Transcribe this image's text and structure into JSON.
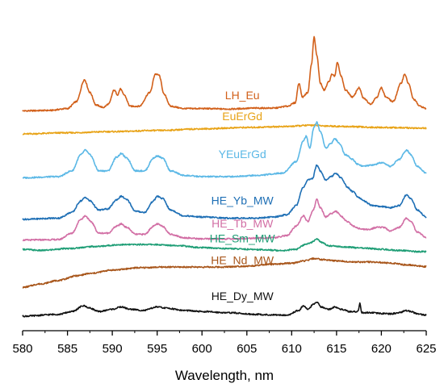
{
  "chart_data": {
    "type": "line",
    "title": "",
    "xlabel": "Wavelength, nm",
    "ylabel": "",
    "xlim": [
      580,
      625
    ],
    "xticks": [
      580,
      585,
      590,
      595,
      600,
      605,
      610,
      615,
      620,
      625
    ],
    "y_axis_shown": false,
    "grid": false,
    "legend": "inline labels",
    "series": [
      {
        "name": "LH_Eu",
        "color": "#d2601a",
        "offset": 8.9,
        "points": [
          [
            580,
            0.0
          ],
          [
            583,
            0.02
          ],
          [
            585,
            0.1
          ],
          [
            586,
            0.4
          ],
          [
            586.9,
            1.35
          ],
          [
            587.5,
            0.8
          ],
          [
            588.2,
            0.25
          ],
          [
            589,
            0.15
          ],
          [
            589.6,
            0.3
          ],
          [
            590.2,
            0.9
          ],
          [
            590.6,
            0.7
          ],
          [
            590.9,
            0.95
          ],
          [
            591.3,
            0.7
          ],
          [
            592,
            0.2
          ],
          [
            593,
            0.2
          ],
          [
            594.2,
            0.8
          ],
          [
            594.8,
            1.6
          ],
          [
            595.2,
            1.55
          ],
          [
            595.8,
            0.7
          ],
          [
            596.5,
            0.2
          ],
          [
            598,
            0.1
          ],
          [
            600,
            0.1
          ],
          [
            603,
            0.08
          ],
          [
            606,
            0.12
          ],
          [
            608,
            0.12
          ],
          [
            609.5,
            0.2
          ],
          [
            610.4,
            0.35
          ],
          [
            610.8,
            1.2
          ],
          [
            611.2,
            0.6
          ],
          [
            611.8,
            0.8
          ],
          [
            612.2,
            2.0
          ],
          [
            612.5,
            3.2
          ],
          [
            612.8,
            2.4
          ],
          [
            613.2,
            1.2
          ],
          [
            613.6,
            0.9
          ],
          [
            614.2,
            1.3
          ],
          [
            614.5,
            1.6
          ],
          [
            614.8,
            1.5
          ],
          [
            615.1,
            2.1
          ],
          [
            615.5,
            1.5
          ],
          [
            616,
            0.9
          ],
          [
            616.8,
            0.6
          ],
          [
            617.5,
            1.0
          ],
          [
            618,
            0.55
          ],
          [
            618.8,
            0.3
          ],
          [
            619.5,
            0.6
          ],
          [
            620,
            1.0
          ],
          [
            620.5,
            0.6
          ],
          [
            621.3,
            0.4
          ],
          [
            622.2,
            1.2
          ],
          [
            622.6,
            1.6
          ],
          [
            623,
            1.2
          ],
          [
            623.6,
            0.5
          ],
          [
            624.3,
            0.2
          ],
          [
            625,
            0.1
          ]
        ]
      },
      {
        "name": "EuErGd",
        "color": "#e8a317",
        "offset": 7.9,
        "points": [
          [
            580,
            0.0
          ],
          [
            585,
            0.05
          ],
          [
            590,
            0.1
          ],
          [
            595,
            0.15
          ],
          [
            600,
            0.22
          ],
          [
            605,
            0.28
          ],
          [
            609,
            0.32
          ],
          [
            612.5,
            0.38
          ],
          [
            613.5,
            0.35
          ],
          [
            616,
            0.32
          ],
          [
            620,
            0.28
          ],
          [
            625,
            0.25
          ]
        ]
      },
      {
        "name": "YEuErGd",
        "color": "#5bb8e6",
        "offset": 6.0,
        "points": [
          [
            580,
            0.0
          ],
          [
            584,
            0.05
          ],
          [
            585.5,
            0.3
          ],
          [
            586.5,
            1.0
          ],
          [
            587,
            1.2
          ],
          [
            587.5,
            1.0
          ],
          [
            588.5,
            0.3
          ],
          [
            589.5,
            0.3
          ],
          [
            590.5,
            0.9
          ],
          [
            591,
            1.05
          ],
          [
            591.6,
            0.85
          ],
          [
            592.6,
            0.3
          ],
          [
            593.6,
            0.3
          ],
          [
            594.6,
            0.85
          ],
          [
            595,
            0.95
          ],
          [
            595.6,
            0.85
          ],
          [
            596.5,
            0.3
          ],
          [
            598,
            0.1
          ],
          [
            600,
            0.05
          ],
          [
            603,
            0.05
          ],
          [
            606,
            0.1
          ],
          [
            609,
            0.2
          ],
          [
            610.5,
            0.7
          ],
          [
            611.3,
            1.6
          ],
          [
            611.6,
            1.8
          ],
          [
            612,
            1.3
          ],
          [
            612.5,
            2.2
          ],
          [
            612.8,
            2.4
          ],
          [
            613.2,
            2.0
          ],
          [
            613.8,
            1.3
          ],
          [
            614.4,
            1.5
          ],
          [
            614.8,
            1.7
          ],
          [
            615.3,
            1.5
          ],
          [
            616,
            1.0
          ],
          [
            616.8,
            0.8
          ],
          [
            617.3,
            0.6
          ],
          [
            618,
            0.5
          ],
          [
            619,
            0.55
          ],
          [
            620,
            0.65
          ],
          [
            621,
            0.5
          ],
          [
            622,
            0.8
          ],
          [
            622.8,
            1.2
          ],
          [
            623.3,
            1.0
          ],
          [
            624,
            0.5
          ],
          [
            625,
            0.2
          ]
        ]
      },
      {
        "name": "HE_Yb_MW",
        "color": "#1e6fb5",
        "offset": 4.2,
        "points": [
          [
            580,
            0.0
          ],
          [
            584,
            0.05
          ],
          [
            585.5,
            0.3
          ],
          [
            586.5,
            0.8
          ],
          [
            587,
            0.95
          ],
          [
            587.5,
            0.8
          ],
          [
            588.5,
            0.4
          ],
          [
            589.5,
            0.45
          ],
          [
            590.5,
            0.85
          ],
          [
            591,
            1.0
          ],
          [
            591.6,
            0.85
          ],
          [
            592.6,
            0.35
          ],
          [
            593.6,
            0.3
          ],
          [
            594.6,
            0.8
          ],
          [
            595,
            1.0
          ],
          [
            595.6,
            0.9
          ],
          [
            596.5,
            0.4
          ],
          [
            598,
            0.15
          ],
          [
            600,
            0.1
          ],
          [
            603,
            0.05
          ],
          [
            606,
            0.05
          ],
          [
            608,
            0.1
          ],
          [
            609.5,
            0.2
          ],
          [
            610.5,
            0.6
          ],
          [
            611.3,
            1.4
          ],
          [
            611.8,
            1.7
          ],
          [
            612.3,
            1.75
          ],
          [
            612.8,
            2.35
          ],
          [
            613.2,
            2.1
          ],
          [
            613.8,
            1.7
          ],
          [
            614.4,
            1.85
          ],
          [
            614.9,
            2.0
          ],
          [
            615.5,
            1.8
          ],
          [
            616.2,
            1.4
          ],
          [
            616.8,
            1.2
          ],
          [
            617.5,
            0.95
          ],
          [
            618,
            0.8
          ],
          [
            619,
            0.6
          ],
          [
            620,
            0.55
          ],
          [
            621,
            0.5
          ],
          [
            622,
            0.6
          ],
          [
            622.8,
            1.05
          ],
          [
            623.3,
            0.9
          ],
          [
            624,
            0.4
          ],
          [
            625,
            0.1
          ]
        ]
      },
      {
        "name": "HE_Tb_MW",
        "color": "#d26fa5",
        "offset": 3.3,
        "points": [
          [
            580,
            0.0
          ],
          [
            584,
            0.02
          ],
          [
            585.5,
            0.3
          ],
          [
            586.5,
            0.9
          ],
          [
            587,
            1.05
          ],
          [
            587.6,
            0.8
          ],
          [
            588.5,
            0.3
          ],
          [
            589.5,
            0.3
          ],
          [
            590.5,
            0.6
          ],
          [
            591,
            0.7
          ],
          [
            591.6,
            0.55
          ],
          [
            592.6,
            0.25
          ],
          [
            593.6,
            0.25
          ],
          [
            594.6,
            0.6
          ],
          [
            595,
            0.7
          ],
          [
            595.6,
            0.6
          ],
          [
            596.5,
            0.25
          ],
          [
            598,
            0.1
          ],
          [
            600,
            0.05
          ],
          [
            603,
            0.05
          ],
          [
            606,
            0.08
          ],
          [
            608,
            0.1
          ],
          [
            609.5,
            0.2
          ],
          [
            610.5,
            0.6
          ],
          [
            611.3,
            1.05
          ],
          [
            611.8,
            0.8
          ],
          [
            612.4,
            1.3
          ],
          [
            612.8,
            1.75
          ],
          [
            613.2,
            1.4
          ],
          [
            613.8,
            1.0
          ],
          [
            614.4,
            1.15
          ],
          [
            614.9,
            1.25
          ],
          [
            615.6,
            1.0
          ],
          [
            616.2,
            0.8
          ],
          [
            616.9,
            0.6
          ],
          [
            617.5,
            0.5
          ],
          [
            618.5,
            0.45
          ],
          [
            619.5,
            0.55
          ],
          [
            620.2,
            0.55
          ],
          [
            621,
            0.4
          ],
          [
            622,
            0.55
          ],
          [
            622.8,
            0.95
          ],
          [
            623.3,
            0.8
          ],
          [
            624,
            0.35
          ],
          [
            625,
            0.1
          ]
        ]
      },
      {
        "name": "HE_Sm_MW",
        "color": "#1f9e76",
        "offset": 2.85,
        "points": [
          [
            580,
            0.05
          ],
          [
            582,
            0.0
          ],
          [
            585,
            0.08
          ],
          [
            588,
            0.17
          ],
          [
            591,
            0.25
          ],
          [
            594,
            0.26
          ],
          [
            597,
            0.22
          ],
          [
            600,
            0.12
          ],
          [
            603,
            0.08
          ],
          [
            606,
            0.04
          ],
          [
            609,
            0.0
          ],
          [
            610.5,
            0.05
          ],
          [
            611.5,
            0.25
          ],
          [
            612.2,
            0.35
          ],
          [
            612.8,
            0.5
          ],
          [
            613.3,
            0.35
          ],
          [
            614.2,
            0.2
          ],
          [
            616,
            0.15
          ],
          [
            618,
            0.1
          ],
          [
            620,
            0.05
          ],
          [
            622,
            0.0
          ],
          [
            624,
            -0.05
          ],
          [
            625,
            -0.05
          ]
        ]
      },
      {
        "name": "HE_Nd_MW",
        "color": "#a8561b",
        "offset": 1.25,
        "points": [
          [
            580,
            0.0
          ],
          [
            582,
            0.15
          ],
          [
            584,
            0.3
          ],
          [
            586,
            0.5
          ],
          [
            587.5,
            0.6
          ],
          [
            590,
            0.75
          ],
          [
            593,
            0.85
          ],
          [
            596,
            0.88
          ],
          [
            599,
            0.88
          ],
          [
            602,
            0.88
          ],
          [
            605,
            0.92
          ],
          [
            608,
            1.0
          ],
          [
            610,
            1.05
          ],
          [
            611.5,
            1.15
          ],
          [
            612.5,
            1.25
          ],
          [
            613.5,
            1.2
          ],
          [
            615,
            1.15
          ],
          [
            617,
            1.1
          ],
          [
            619,
            1.1
          ],
          [
            621,
            1.05
          ],
          [
            623,
            0.97
          ],
          [
            625,
            0.9
          ]
        ]
      },
      {
        "name": "HE_Dy_MW",
        "color": "#111111",
        "offset": 0.0,
        "points": [
          [
            580,
            0.0
          ],
          [
            584,
            0.08
          ],
          [
            585.5,
            0.2
          ],
          [
            586.8,
            0.45
          ],
          [
            587.5,
            0.35
          ],
          [
            588.5,
            0.2
          ],
          [
            590,
            0.3
          ],
          [
            591,
            0.4
          ],
          [
            592,
            0.3
          ],
          [
            593.5,
            0.25
          ],
          [
            595,
            0.4
          ],
          [
            596,
            0.35
          ],
          [
            598,
            0.25
          ],
          [
            600,
            0.2
          ],
          [
            603,
            0.15
          ],
          [
            606,
            0.08
          ],
          [
            608,
            0.05
          ],
          [
            609.5,
            0.05
          ],
          [
            610.8,
            0.25
          ],
          [
            611.3,
            0.45
          ],
          [
            611.8,
            0.3
          ],
          [
            612.4,
            0.5
          ],
          [
            612.8,
            0.6
          ],
          [
            613.3,
            0.4
          ],
          [
            614.2,
            0.3
          ],
          [
            614.8,
            0.4
          ],
          [
            615.5,
            0.3
          ],
          [
            616.5,
            0.2
          ],
          [
            617.4,
            0.2
          ],
          [
            617.6,
            0.55
          ],
          [
            617.8,
            0.15
          ],
          [
            618.5,
            0.15
          ],
          [
            620,
            0.12
          ],
          [
            621,
            0.1
          ],
          [
            622,
            0.15
          ],
          [
            622.8,
            0.25
          ],
          [
            623.3,
            0.2
          ],
          [
            624,
            0.1
          ],
          [
            625,
            0.05
          ]
        ]
      }
    ],
    "labels": [
      {
        "text": "LH_Eu",
        "x": 604.5,
        "y": 9.4,
        "color": "#d2601a"
      },
      {
        "text": "EuErGd",
        "x": 604.5,
        "y": 8.5,
        "color": "#e8a317"
      },
      {
        "text": "YEuErGd",
        "x": 604.5,
        "y": 6.85,
        "color": "#5bb8e6"
      },
      {
        "text": "HE_Yb_MW",
        "x": 604.5,
        "y": 4.85,
        "color": "#1e6fb5"
      },
      {
        "text": "HE_Tb_MW",
        "x": 604.5,
        "y": 3.85,
        "color": "#d26fa5"
      },
      {
        "text": "HE_Sm_MW",
        "x": 604.5,
        "y": 3.2,
        "color": "#1f9e76"
      },
      {
        "text": "HE_Nd_MW",
        "x": 604.5,
        "y": 2.25,
        "color": "#a8561b"
      },
      {
        "text": "HE_Dy_MW",
        "x": 604.5,
        "y": 0.7,
        "color": "#111111"
      }
    ]
  }
}
